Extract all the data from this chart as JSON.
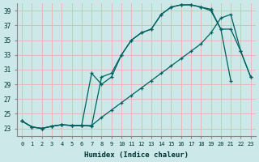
{
  "xlabel": "Humidex (Indice chaleur)",
  "background_color": "#cce8e8",
  "grid_color": "#e8b8b8",
  "line_color": "#006060",
  "xlim": [
    -0.5,
    23.5
  ],
  "ylim": [
    22.0,
    40.0
  ],
  "yticks": [
    23,
    25,
    27,
    29,
    31,
    33,
    35,
    37,
    39
  ],
  "xticks": [
    0,
    1,
    2,
    3,
    4,
    5,
    6,
    7,
    8,
    9,
    10,
    11,
    12,
    13,
    14,
    15,
    16,
    17,
    18,
    19,
    20,
    21,
    22,
    23
  ],
  "line1_x": [
    0,
    1,
    2,
    3,
    4,
    5,
    6,
    7,
    8,
    9,
    10,
    11,
    12,
    13,
    14,
    15,
    16,
    17,
    18,
    19,
    20,
    21
  ],
  "line1_y": [
    24.0,
    23.2,
    23.0,
    23.3,
    23.5,
    23.4,
    23.4,
    23.3,
    30.0,
    30.5,
    33.0,
    35.0,
    36.0,
    36.5,
    38.5,
    39.5,
    39.8,
    39.8,
    39.5,
    39.2,
    36.5,
    29.5
  ],
  "line2_x": [
    0,
    1,
    2,
    3,
    4,
    5,
    6,
    7,
    8,
    9,
    10,
    11,
    12,
    13,
    14,
    15,
    16,
    17,
    18,
    19,
    20,
    21,
    22,
    23
  ],
  "line2_y": [
    24.0,
    23.2,
    23.0,
    23.3,
    23.5,
    23.4,
    23.4,
    30.5,
    29.0,
    30.0,
    33.0,
    35.0,
    36.0,
    36.5,
    38.5,
    39.5,
    39.8,
    39.8,
    39.5,
    39.0,
    36.5,
    36.5,
    33.5,
    30.0
  ],
  "line3_x": [
    0,
    1,
    2,
    3,
    4,
    5,
    6,
    7,
    8,
    9,
    10,
    11,
    12,
    13,
    14,
    15,
    16,
    17,
    18,
    19,
    20,
    21,
    22,
    23
  ],
  "line3_y": [
    24.0,
    23.2,
    23.0,
    23.3,
    23.5,
    23.4,
    23.4,
    23.4,
    24.5,
    25.5,
    26.5,
    27.5,
    28.5,
    29.5,
    30.5,
    31.5,
    32.5,
    33.5,
    34.5,
    36.0,
    38.0,
    38.5,
    33.5,
    30.0
  ]
}
